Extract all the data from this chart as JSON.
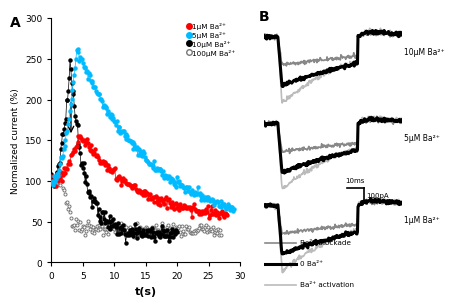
{
  "panel_A": {
    "xlabel": "t(s)",
    "ylabel": "Normalized current (%)",
    "ylim": [
      0,
      300
    ],
    "xlim": [
      0,
      30
    ],
    "yticks": [
      0,
      50,
      100,
      150,
      200,
      250,
      300
    ],
    "xticks": [
      0,
      5,
      10,
      15,
      20,
      25,
      30
    ],
    "legend_labels": [
      "1μM Ba²⁺",
      "5μM Ba²⁺",
      "10μM Ba²⁺",
      "100μM Ba²⁺"
    ],
    "colors_A": [
      "#ff0000",
      "#00bbff",
      "#000000",
      "#777777"
    ]
  },
  "panel_B": {
    "labels": [
      "10μM Ba²⁺",
      "5μM Ba²⁺",
      "1μM Ba²⁺"
    ],
    "legend_labels": [
      "Ba²⁺ activation",
      "0 Ba²⁺",
      "Ba²⁺ blockade"
    ],
    "c_activation": "#bbbbbb",
    "c_zero": "#000000",
    "c_blockade": "#888888",
    "lw_activation": 1.2,
    "lw_zero": 2.2,
    "lw_blockade": 1.2
  }
}
